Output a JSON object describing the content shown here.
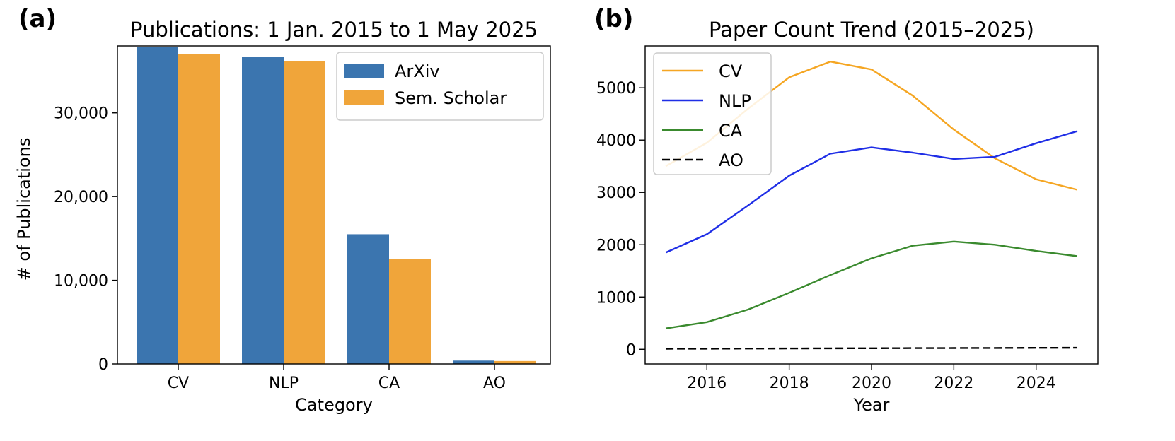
{
  "chart_data": [
    {
      "panel_label": "(a)",
      "type": "bar",
      "title": "Publications: 1 Jan. 2015 to 1 May 2025",
      "xlabel": "Category",
      "ylabel": "# of Publications",
      "categories": [
        "CV",
        "NLP",
        "CA",
        "AO"
      ],
      "series": [
        {
          "name": "ArXiv",
          "color": "#3b75af",
          "values": [
            37900,
            36700,
            15500,
            400
          ]
        },
        {
          "name": "Sem. Scholar",
          "color": "#f0a53a",
          "values": [
            37000,
            36200,
            12500,
            350
          ]
        }
      ],
      "ylim": [
        0,
        38000
      ],
      "yticks": [
        0,
        10000,
        20000,
        30000
      ],
      "ytick_labels": [
        "0",
        "10,000",
        "20,000",
        "30,000"
      ],
      "legend_position": "top-right",
      "grid": false
    },
    {
      "panel_label": "(b)",
      "type": "line",
      "title": "Paper Count Trend (2015–2025)",
      "xlabel": "Year",
      "ylabel": "",
      "x": [
        2015,
        2016,
        2017,
        2018,
        2019,
        2020,
        2021,
        2022,
        2023,
        2024,
        2025
      ],
      "series": [
        {
          "name": "CV",
          "color": "#f5a623",
          "dash": false,
          "values": [
            3500,
            3950,
            4600,
            5200,
            5500,
            5350,
            4850,
            4200,
            3650,
            3250,
            3050
          ]
        },
        {
          "name": "NLP",
          "color": "#1f2ee6",
          "dash": false,
          "values": [
            1850,
            2200,
            2750,
            3320,
            3740,
            3860,
            3760,
            3640,
            3680,
            3940,
            4170
          ]
        },
        {
          "name": "CA",
          "color": "#3a8a2e",
          "dash": false,
          "values": [
            400,
            520,
            760,
            1080,
            1420,
            1740,
            1980,
            2060,
            2000,
            1880,
            1780
          ]
        },
        {
          "name": "AO",
          "color": "#000000",
          "dash": true,
          "values": [
            10,
            12,
            14,
            16,
            18,
            20,
            22,
            24,
            26,
            28,
            30
          ]
        }
      ],
      "xlim": [
        2014.5,
        2025.5
      ],
      "ylim": [
        -280,
        5800
      ],
      "xticks": [
        2016,
        2018,
        2020,
        2022,
        2024
      ],
      "yticks": [
        0,
        1000,
        2000,
        3000,
        4000,
        5000
      ],
      "legend_position": "top-left",
      "grid": false
    }
  ]
}
